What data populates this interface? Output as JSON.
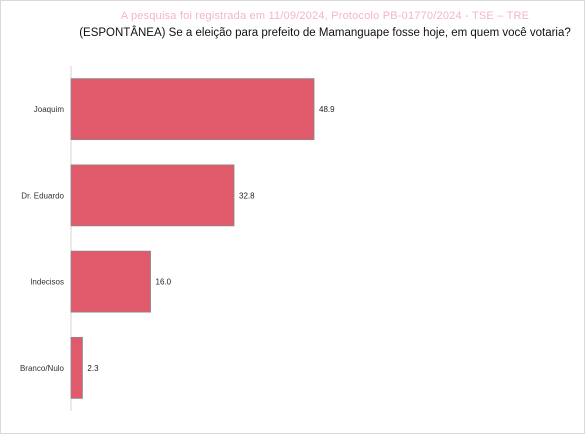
{
  "overlay_note": "A pesquisa foi registrada em 11/09/2024, Protocolo PB-01770/2024 - TSE – TRE",
  "chart_data": {
    "type": "bar",
    "orientation": "horizontal",
    "title": "(ESPONTÂNEA) Se a eleição para prefeito de Mamanguape fosse hoje, em quem você votaria?",
    "categories": [
      "Joaquim",
      "Dr. Eduardo",
      "Indecisos",
      "Branco/Nulo"
    ],
    "values": [
      48.9,
      32.8,
      16.0,
      2.3
    ],
    "value_labels": [
      "48.9",
      "32.8",
      "16.0",
      "2.3"
    ],
    "xlim": [
      0,
      100
    ],
    "grid": false,
    "bar_color": "#e05a6b"
  }
}
